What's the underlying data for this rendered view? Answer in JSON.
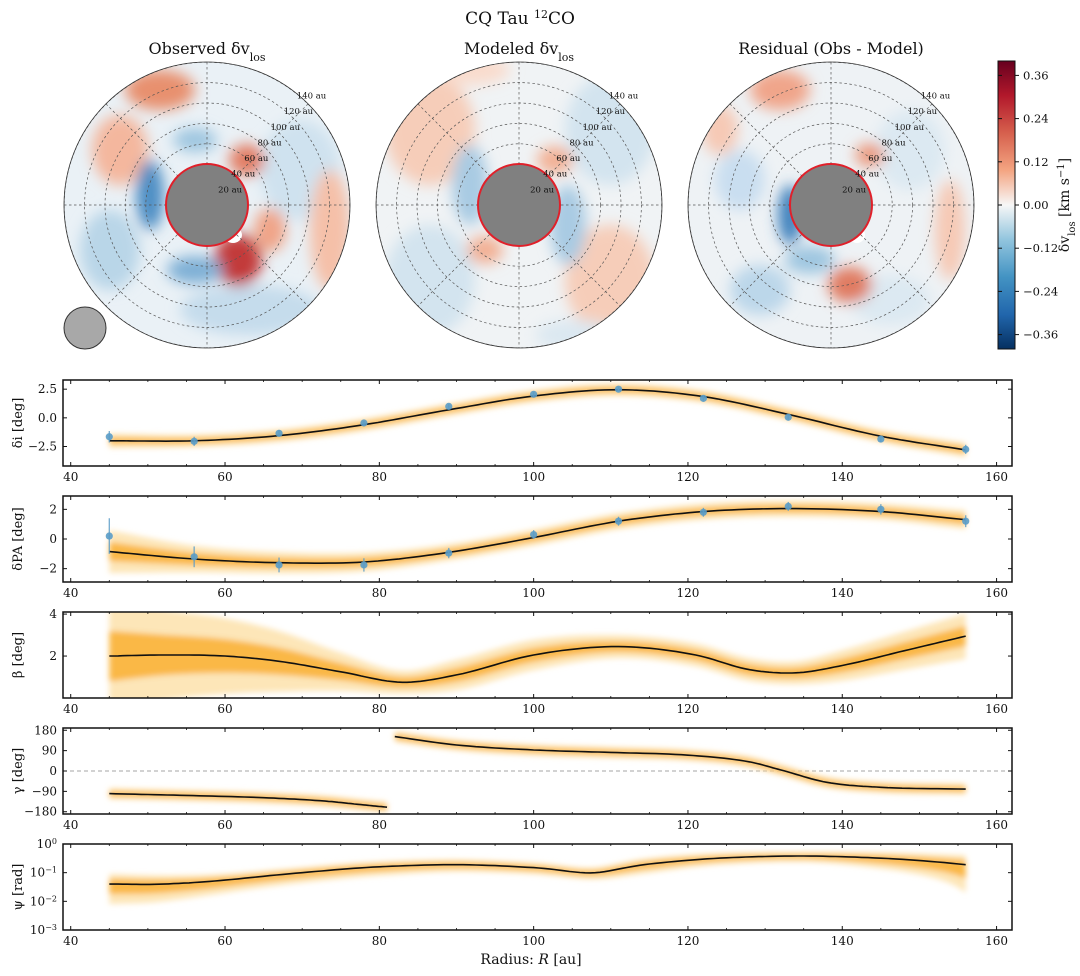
{
  "figure": {
    "title": "CQ Tau",
    "title_sup": "12",
    "title_suffix": "CO"
  },
  "maps": [
    {
      "title_pre": "Observed δv",
      "title_sub": "los",
      "title_post": ""
    },
    {
      "title_pre": "Modeled δv",
      "title_sub": "los",
      "title_post": ""
    },
    {
      "title_pre": "Residual (Obs - Model)",
      "title_sub": "",
      "title_post": ""
    }
  ],
  "ring_labels": [
    "20 au",
    "40 au",
    "60 au",
    "80 au",
    "100 au",
    "120 au",
    "140 au"
  ],
  "colorbar": {
    "label_pre": "δv",
    "label_sub": "los",
    "label_post": " [km s",
    "label_sup": "−1",
    "label_end": "]",
    "ticks": [
      "0.36",
      "0.24",
      "0.12",
      "0.00",
      "−0.12",
      "−0.24",
      "−0.36"
    ],
    "range": [
      -0.4,
      0.4
    ],
    "colors": [
      "#053061",
      "#2166ac",
      "#4393c3",
      "#92c5de",
      "#f7f7f7",
      "#f4a582",
      "#d6604d",
      "#b2182b",
      "#67001f"
    ]
  },
  "chart_data": [
    {
      "type": "line",
      "ylabel": "δi [deg]",
      "xlim": [
        39,
        162
      ],
      "ylim": [
        -4.2,
        3.3
      ],
      "yticks": [
        -2.5,
        0.0,
        2.5
      ],
      "ytick_labels": [
        "−2.5",
        "0.0",
        "2.5"
      ],
      "x": [
        45,
        56,
        67,
        78,
        89,
        100,
        111,
        122,
        133,
        145,
        156
      ],
      "model": [
        -2.0,
        -2.0,
        -1.55,
        -0.6,
        0.7,
        1.9,
        2.45,
        1.85,
        0.3,
        -1.6,
        -2.8
      ],
      "points": [
        -1.65,
        -2.05,
        -1.35,
        -0.45,
        1.0,
        2.05,
        2.5,
        1.7,
        0.05,
        -1.85,
        -2.75
      ],
      "errors": [
        0.5,
        0.4,
        0.3,
        0.2,
        0.2,
        0.2,
        0.2,
        0.2,
        0.2,
        0.3,
        0.4
      ],
      "band": [
        0.35,
        0.3,
        0.3,
        0.3,
        0.3,
        0.3,
        0.3,
        0.3,
        0.3,
        0.3,
        0.35
      ]
    },
    {
      "type": "line",
      "ylabel": "δPA [deg]",
      "xlim": [
        39,
        162
      ],
      "ylim": [
        -2.9,
        2.9
      ],
      "yticks": [
        -2,
        0,
        2
      ],
      "ytick_labels": [
        "−2",
        "0",
        "2"
      ],
      "x": [
        45,
        56,
        67,
        78,
        89,
        100,
        111,
        122,
        133,
        145,
        156
      ],
      "model": [
        -0.85,
        -1.35,
        -1.6,
        -1.55,
        -0.9,
        0.1,
        1.2,
        1.85,
        2.05,
        1.85,
        1.3
      ],
      "points": [
        0.2,
        -1.2,
        -1.75,
        -1.75,
        -0.95,
        0.3,
        1.2,
        1.8,
        2.2,
        2.0,
        1.2
      ],
      "errors": [
        1.2,
        0.7,
        0.5,
        0.45,
        0.35,
        0.3,
        0.3,
        0.3,
        0.3,
        0.35,
        0.4
      ],
      "band": [
        0.8,
        0.5,
        0.4,
        0.35,
        0.3,
        0.3,
        0.3,
        0.3,
        0.3,
        0.3,
        0.35
      ]
    },
    {
      "type": "line",
      "ylabel": "β [deg]",
      "xlim": [
        39,
        162
      ],
      "ylim": [
        0,
        4.1
      ],
      "yticks": [
        2,
        4
      ],
      "ytick_labels": [
        "2",
        "4"
      ],
      "x": [
        45,
        52,
        60,
        67,
        75,
        83,
        90,
        100,
        111,
        121,
        128,
        134,
        140,
        148,
        156
      ],
      "model": [
        2.0,
        2.05,
        2.0,
        1.75,
        1.25,
        0.75,
        1.1,
        2.05,
        2.45,
        2.05,
        1.35,
        1.2,
        1.55,
        2.25,
        2.95
      ],
      "band": [
        1.5,
        1.2,
        1.0,
        0.8,
        0.5,
        0.3,
        0.4,
        0.4,
        0.3,
        0.3,
        0.3,
        0.3,
        0.4,
        0.5,
        0.6
      ]
    },
    {
      "type": "line",
      "ylabel": "γ [deg]",
      "xlim": [
        39,
        162
      ],
      "ylim": [
        -190,
        190
      ],
      "yticks": [
        -180,
        -90,
        0,
        90,
        180
      ],
      "ytick_labels": [
        "−180",
        "−90",
        "0",
        "90",
        "180"
      ],
      "segments": [
        {
          "x": [
            45,
            55,
            65,
            73,
            78,
            81
          ],
          "y": [
            -100,
            -108,
            -118,
            -133,
            -150,
            -160
          ]
        },
        {
          "x": [
            82,
            90,
            100,
            110,
            120,
            128,
            132,
            138,
            145,
            156
          ],
          "y": [
            152,
            115,
            93,
            82,
            70,
            40,
            5,
            -50,
            -72,
            -80
          ]
        }
      ],
      "band": 15
    },
    {
      "type": "line",
      "ylabel": "ψ [rad]",
      "yscale": "log",
      "xlim": [
        39,
        162
      ],
      "ylim": [
        0.001,
        1
      ],
      "yticks": [
        0.001,
        0.01,
        0.1,
        1
      ],
      "ytick_pows": [
        "−3",
        "−2",
        "−1",
        "0"
      ],
      "x": [
        45,
        52,
        60,
        70,
        80,
        90,
        100,
        108,
        115,
        125,
        135,
        145,
        156
      ],
      "model": [
        0.04,
        0.04,
        0.055,
        0.1,
        0.16,
        0.19,
        0.15,
        0.1,
        0.2,
        0.33,
        0.38,
        0.32,
        0.19
      ],
      "band_low": [
        0.008,
        0.01,
        0.02,
        0.045,
        0.08,
        0.11,
        0.09,
        0.06,
        0.1,
        0.2,
        0.24,
        0.14,
        0.02
      ],
      "band_high": [
        0.09,
        0.08,
        0.09,
        0.15,
        0.24,
        0.28,
        0.22,
        0.15,
        0.32,
        0.48,
        0.52,
        0.5,
        0.4
      ]
    }
  ],
  "xaxis": {
    "ticks": [
      40,
      60,
      80,
      100,
      120,
      140,
      160
    ],
    "tick_labels": [
      "40",
      "60",
      "80",
      "100",
      "120",
      "140",
      "160"
    ],
    "label_pre": "Radius: ",
    "label_var": "R",
    "label_post": " [au]"
  }
}
